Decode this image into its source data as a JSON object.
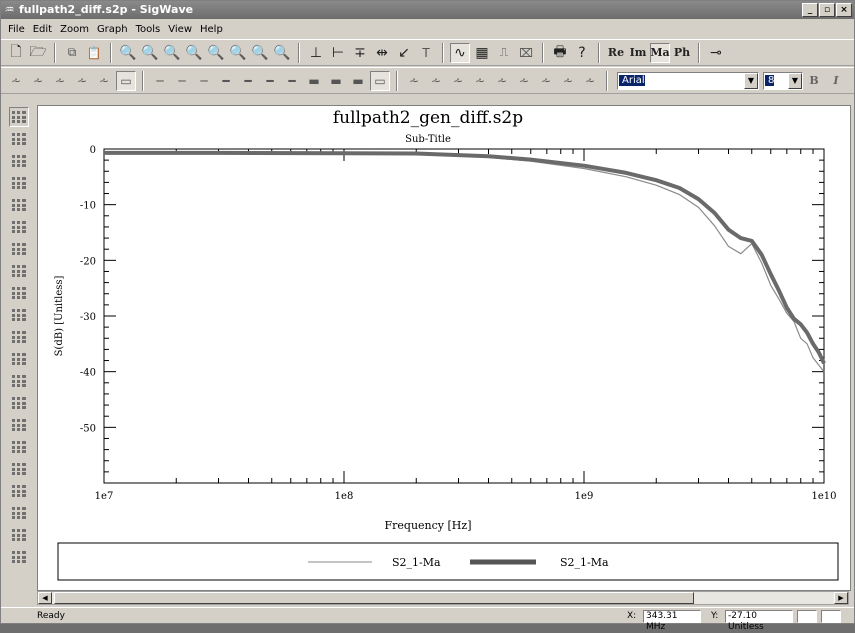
{
  "window": {
    "title": "fullpath2_diff.s2p - SigWave",
    "minimize": "_",
    "maximize": "▫",
    "close": "×"
  },
  "menu": [
    "File",
    "Edit",
    "Zoom",
    "Graph",
    "Tools",
    "View",
    "Help"
  ],
  "toolbar": {
    "re_label": "Re",
    "im_label": "Im",
    "ma_label": "Ma",
    "ph_label": "Ph",
    "font_value": "Arial",
    "size_value": "8",
    "bold_label": "B",
    "italic_label": "I"
  },
  "status": {
    "text": "Ready",
    "x_label": "X:",
    "x_value": "343.31 MHz",
    "y_label": "Y:",
    "y_value": "-27.10 Unitless"
  },
  "chart_data": {
    "type": "line",
    "title": "fullpath2_gen_diff.s2p",
    "subtitle": "Sub-Title",
    "xlabel": "Frequency [Hz]",
    "ylabel": "S(dB) [Unitless]",
    "x_scale": "log",
    "xlim": [
      10000000,
      10000000000
    ],
    "ylim": [
      -60,
      0
    ],
    "x_ticks": [
      "1e7",
      "1e8",
      "1e9",
      "1e10"
    ],
    "y_ticks": [
      "0",
      "-10",
      "-20",
      "-30",
      "-40",
      "-50"
    ],
    "grid": false,
    "legend_position": "bottom",
    "series": [
      {
        "name": "S2_1-Ma",
        "style": "thin",
        "color": "#8a8a8a",
        "points": [
          [
            10000000,
            -0.8
          ],
          [
            30000000,
            -0.8
          ],
          [
            100000000,
            -0.85
          ],
          [
            200000000,
            -0.9
          ],
          [
            400000000,
            -1.5
          ],
          [
            600000000,
            -2.2
          ],
          [
            1000000000,
            -3.5
          ],
          [
            1500000000,
            -5.0
          ],
          [
            2000000000,
            -6.5
          ],
          [
            2500000000,
            -8.2
          ],
          [
            3000000000,
            -10.5
          ],
          [
            3500000000,
            -13.8
          ],
          [
            4000000000,
            -17.5
          ],
          [
            4500000000,
            -18.8
          ],
          [
            5000000000,
            -17.0
          ],
          [
            5500000000,
            -20.5
          ],
          [
            6000000000,
            -24.5
          ],
          [
            6500000000,
            -27.0
          ],
          [
            7000000000,
            -29.5
          ],
          [
            7500000000,
            -31.0
          ],
          [
            8000000000,
            -34.0
          ],
          [
            8500000000,
            -35.0
          ],
          [
            9000000000,
            -37.5
          ],
          [
            9500000000,
            -38.8
          ],
          [
            10000000000,
            -40.0
          ]
        ]
      },
      {
        "name": "S2_1-Ma",
        "style": "thick",
        "color": "#6a6a6a",
        "points": [
          [
            10000000,
            -0.7
          ],
          [
            30000000,
            -0.7
          ],
          [
            100000000,
            -0.75
          ],
          [
            200000000,
            -0.8
          ],
          [
            400000000,
            -1.3
          ],
          [
            600000000,
            -1.9
          ],
          [
            1000000000,
            -3.0
          ],
          [
            1500000000,
            -4.3
          ],
          [
            2000000000,
            -5.6
          ],
          [
            2500000000,
            -7.0
          ],
          [
            3000000000,
            -9.0
          ],
          [
            3500000000,
            -11.5
          ],
          [
            4000000000,
            -14.5
          ],
          [
            4500000000,
            -16.0
          ],
          [
            5000000000,
            -16.5
          ],
          [
            5500000000,
            -19.0
          ],
          [
            6000000000,
            -22.5
          ],
          [
            6500000000,
            -25.5
          ],
          [
            7000000000,
            -28.5
          ],
          [
            7500000000,
            -30.5
          ],
          [
            8000000000,
            -31.5
          ],
          [
            8500000000,
            -33.0
          ],
          [
            9000000000,
            -35.0
          ],
          [
            9500000000,
            -36.5
          ],
          [
            10000000000,
            -38.5
          ]
        ]
      }
    ]
  }
}
